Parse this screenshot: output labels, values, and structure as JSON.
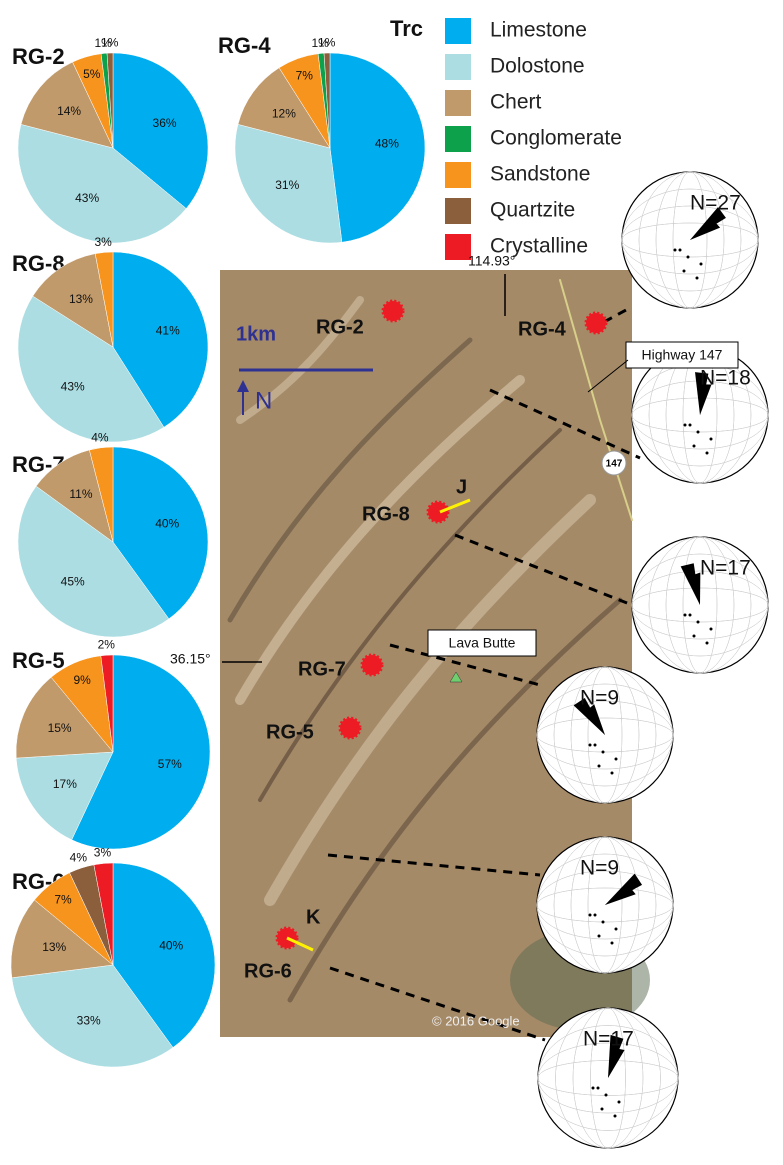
{
  "chart_data": [
    {
      "type": "pie",
      "title": "RG-2",
      "categories": [
        "Limestone",
        "Dolostone",
        "Chert",
        "Sandstone",
        "Conglomerate",
        "Quartzite"
      ],
      "values": [
        36,
        43,
        14,
        5,
        1,
        1
      ],
      "value_labels": [
        "36%",
        "43%",
        "14%",
        "5%",
        "1%",
        "1%"
      ]
    },
    {
      "type": "pie",
      "title": "RG-4",
      "categories": [
        "Limestone",
        "Dolostone",
        "Chert",
        "Sandstone",
        "Conglomerate",
        "Quartzite"
      ],
      "values": [
        48,
        31,
        12,
        7,
        1,
        1
      ],
      "value_labels": [
        "48%",
        "31%",
        "12%",
        "7%",
        "1%",
        "1%"
      ]
    },
    {
      "type": "pie",
      "title": "RG-8",
      "categories": [
        "Limestone",
        "Dolostone",
        "Chert",
        "Sandstone"
      ],
      "values": [
        41,
        43,
        13,
        3
      ],
      "value_labels": [
        "41%",
        "43%",
        "13%",
        "3%"
      ]
    },
    {
      "type": "pie",
      "title": "RG-7",
      "categories": [
        "Limestone",
        "Dolostone",
        "Chert",
        "Sandstone"
      ],
      "values": [
        40,
        45,
        11,
        4
      ],
      "value_labels": [
        "40%",
        "45%",
        "11%",
        "4%"
      ]
    },
    {
      "type": "pie",
      "title": "RG-5",
      "categories": [
        "Limestone",
        "Dolostone",
        "Chert",
        "Sandstone",
        "Crystalline"
      ],
      "values": [
        57,
        17,
        15,
        9,
        2
      ],
      "value_labels": [
        "57%",
        "17%",
        "15%",
        "9%",
        "2%"
      ]
    },
    {
      "type": "pie",
      "title": "RG-6",
      "categories": [
        "Limestone",
        "Dolostone",
        "Chert",
        "Sandstone",
        "Quartzite",
        "Crystalline"
      ],
      "values": [
        40,
        33,
        13,
        7,
        4,
        3
      ],
      "value_labels": [
        "40%",
        "33%",
        "13%",
        "7%",
        "4%",
        "3%"
      ]
    }
  ],
  "legend": {
    "title": "Trc",
    "items": [
      {
        "name": "Limestone",
        "color": "#00aeef"
      },
      {
        "name": "Dolostone",
        "color": "#abdde3"
      },
      {
        "name": "Chert",
        "color": "#c19a6b"
      },
      {
        "name": "Conglomerate",
        "color": "#0ea14b"
      },
      {
        "name": "Sandstone",
        "color": "#f7941d"
      },
      {
        "name": "Quartzite",
        "color": "#8b5e3c"
      },
      {
        "name": "Crystalline",
        "color": "#ed1c24"
      }
    ]
  },
  "map": {
    "sites": [
      "RG-2",
      "RG-4",
      "RG-8",
      "RG-7",
      "RG-5",
      "RG-6"
    ],
    "sections": [
      "J",
      "K"
    ],
    "scale": "1km",
    "north": "N",
    "landmark": "Lava Butte",
    "highway": "Highway 147",
    "shield": "147",
    "longitude": "114.93°",
    "latitude": "36.15°",
    "credit": "© 2016 Google"
  },
  "stereonets": [
    "N=27",
    "N=18",
    "N=17",
    "N=9",
    "N=9",
    "N=17"
  ]
}
